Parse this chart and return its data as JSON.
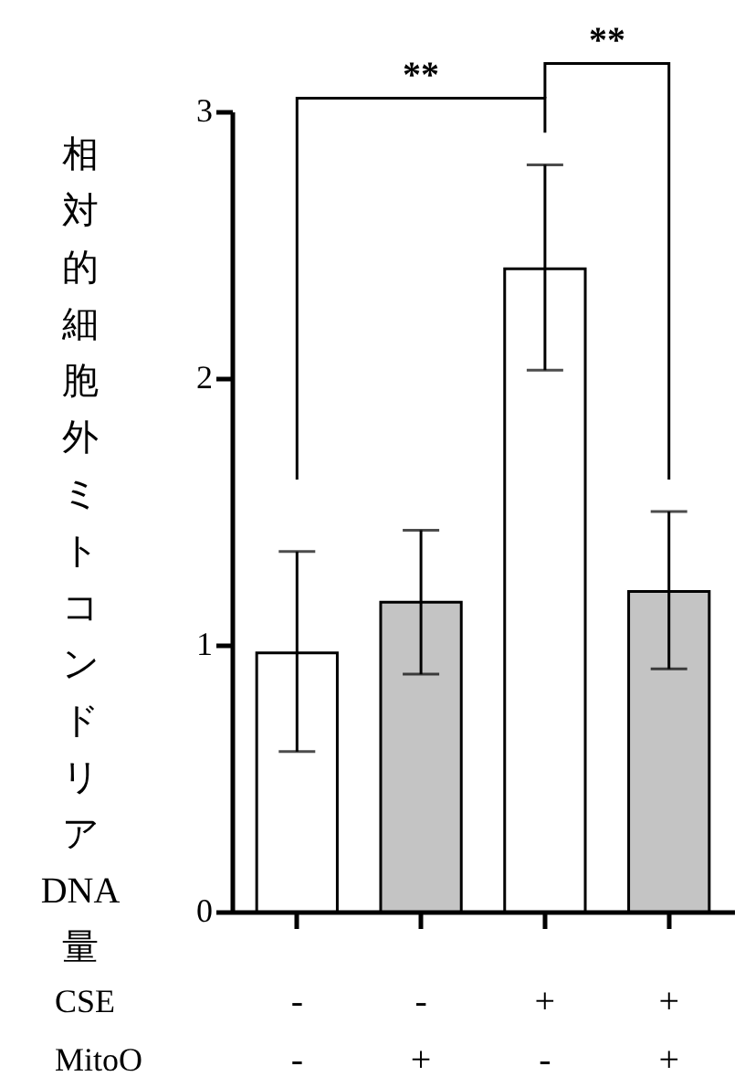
{
  "chart_data": {
    "type": "bar",
    "ylabel": "相対的細胞外ミトコンドリアDNA量",
    "categories": [
      "-\n-",
      "-\n+",
      "+\n-",
      "+\n+"
    ],
    "values": [
      0.97,
      1.16,
      2.41,
      1.2
    ],
    "colors": [
      "#ffffff",
      "#c4c4c4",
      "#ffffff",
      "#c4c4c4"
    ],
    "errors": [
      [
        0.6,
        1.35
      ],
      [
        0.89,
        1.43
      ],
      [
        2.03,
        2.8
      ],
      [
        0.91,
        1.5
      ]
    ],
    "ylim": [
      0,
      3
    ],
    "yticks": [
      0,
      1,
      2,
      3
    ],
    "grid": false,
    "annotations": [
      "**",
      "**",
      "CSE",
      "MitoO"
    ]
  }
}
